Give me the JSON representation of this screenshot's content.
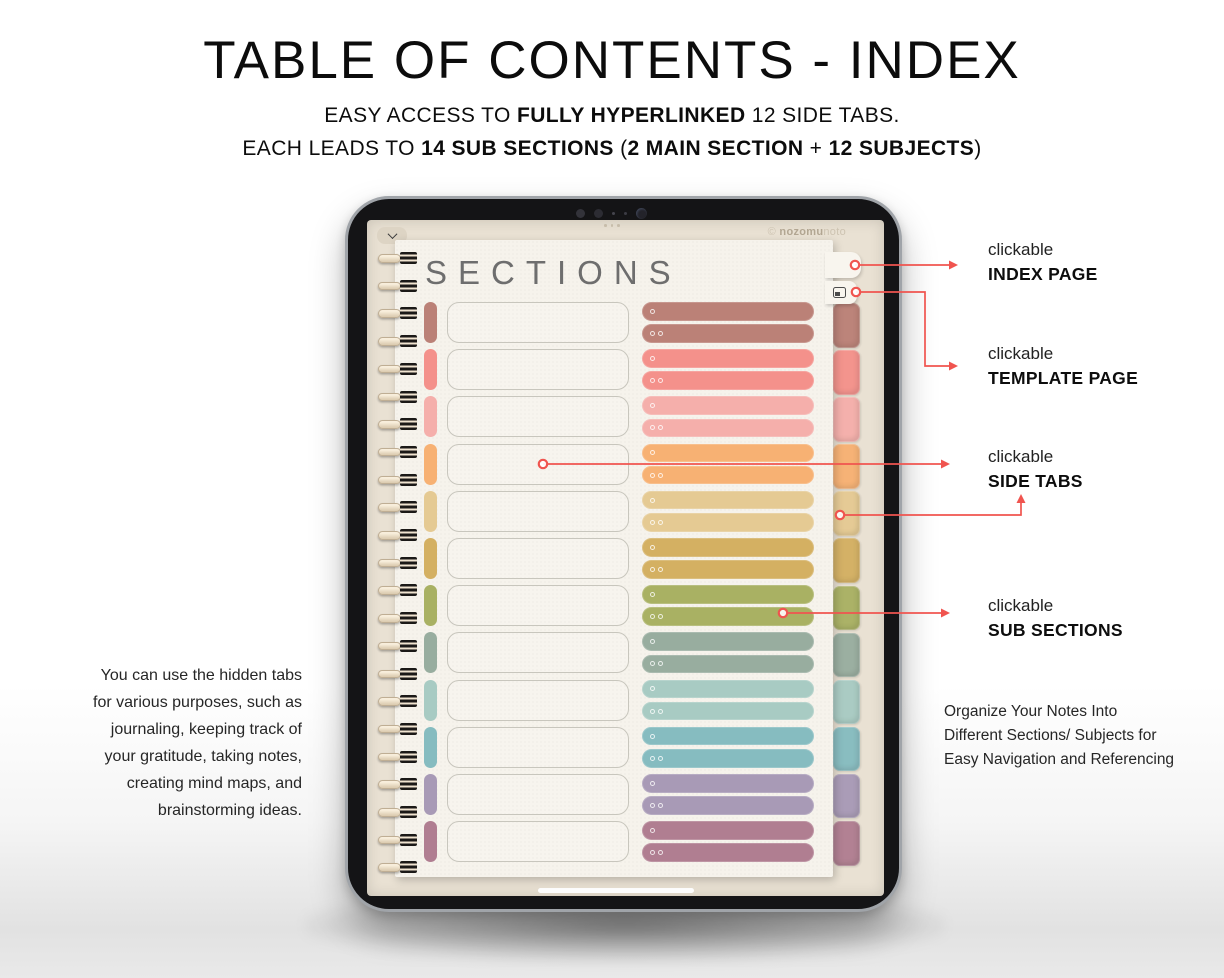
{
  "theme": {
    "accent_red": "#f0544f",
    "paper": "#f6f3ec",
    "screen_bg": "#e9e1d3",
    "bezel": "#141416",
    "page_title_color": "#6e6e6e"
  },
  "header": {
    "title": "TABLE OF CONTENTS - INDEX",
    "line1": {
      "pre": "EASY ACCESS TO ",
      "bold": "FULLY HYPERLINKED",
      "post": " 12 SIDE TABS."
    },
    "line2": {
      "pre": "EACH LEADS TO ",
      "bold1": "14 SUB SECTIONS",
      "mid1": " (",
      "bold2": "2 MAIN SECTION",
      "mid2": " + ",
      "bold3": "12 SUBJECTS",
      "post": ")"
    }
  },
  "tablet": {
    "page_title": "SECTIONS",
    "watermark": {
      "symbol": "©",
      "bold": "nozomu",
      "light": "noto"
    },
    "sections": [
      {
        "name": "rose-brown",
        "color": "#bb8177"
      },
      {
        "name": "salmon",
        "color": "#f4918b"
      },
      {
        "name": "blush-pink",
        "color": "#f5afab"
      },
      {
        "name": "orange",
        "color": "#f7b173"
      },
      {
        "name": "sand",
        "color": "#e5ca93"
      },
      {
        "name": "mustard",
        "color": "#d4b062"
      },
      {
        "name": "olive",
        "color": "#a9b163"
      },
      {
        "name": "sage",
        "color": "#98ad9f"
      },
      {
        "name": "aqua-light",
        "color": "#a8cbc3"
      },
      {
        "name": "teal",
        "color": "#86bcc0"
      },
      {
        "name": "lavender",
        "color": "#a89ab6"
      },
      {
        "name": "mauve",
        "color": "#b07e91"
      }
    ]
  },
  "annotations": {
    "index_page": {
      "line1": "clickable",
      "line2": "INDEX PAGE"
    },
    "template_page": {
      "line1": "clickable",
      "line2": "TEMPLATE PAGE"
    },
    "side_tabs": {
      "line1": "clickable",
      "line2": "SIDE TABS"
    },
    "sub_sections": {
      "line1": "clickable",
      "line2": "SUB SECTIONS"
    }
  },
  "left_note": {
    "lines": [
      "You can use the hidden tabs",
      "for various purposes, such as",
      "journaling, keeping track of",
      "your gratitude, taking notes,",
      "creating mind maps, and",
      "brainstorming ideas."
    ]
  },
  "right_note": {
    "lines": [
      "Organize Your Notes Into",
      "Different Sections/ Subjects for",
      "Easy Navigation and Referencing"
    ]
  }
}
